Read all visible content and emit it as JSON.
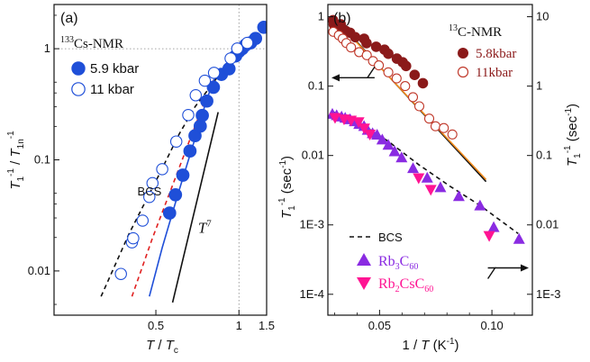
{
  "chart_data": [
    {
      "type": "scatter",
      "panel_label": "(a)",
      "title": "133Cs-NMR",
      "title_sup": "133",
      "title_base": "Cs-NMR",
      "xlabel": "T / Tc",
      "xlabel_parts": [
        "T",
        " / ",
        "T",
        "c"
      ],
      "ylabel": "T1^-1 / T1n^-1",
      "ylabel_parts": [
        "T",
        "1",
        "-1",
        " / ",
        "T",
        "1n",
        "-1"
      ],
      "x_scale": "reciprocal",
      "y_scale": "log",
      "xlim": [
        0.31,
        1.5
      ],
      "ylim": [
        0.004,
        2.5
      ],
      "x_ticks": [
        0.5,
        1,
        1.5
      ],
      "x_tick_labels": [
        "0.5",
        "1",
        "1.5"
      ],
      "y_ticks": [
        0.01,
        0.1,
        1
      ],
      "y_tick_labels": [
        "0.01",
        "0.1",
        "1"
      ],
      "reference_lines": {
        "x": 1,
        "y": 1
      },
      "series": [
        {
          "name": "5.9 kbar",
          "marker": "filled-circle",
          "color": "#1f4fd8",
          "points": [
            [
              0.545,
              0.0332
            ],
            [
              0.567,
              0.0485
            ],
            [
              0.597,
              0.0728
            ],
            [
              0.629,
              0.12
            ],
            [
              0.654,
              0.165
            ],
            [
              0.682,
              0.201
            ],
            [
              0.694,
              0.251
            ],
            [
              0.721,
              0.338
            ],
            [
              0.765,
              0.45
            ],
            [
              0.826,
              0.588
            ],
            [
              0.893,
              0.66
            ],
            [
              0.962,
              0.861
            ],
            [
              1.0,
              0.946
            ],
            [
              1.042,
              1.003
            ],
            [
              1.087,
              1.08
            ],
            [
              1.163,
              1.13
            ],
            [
              1.25,
              1.237
            ],
            [
              1.429,
              1.56
            ]
          ]
        },
        {
          "name": "11 kbar",
          "marker": "open-circle",
          "color": "#1f4fd8",
          "points": [
            [
              0.413,
              0.0094
            ],
            [
              0.437,
              0.0181
            ],
            [
              0.44,
              0.0197
            ],
            [
              0.463,
              0.0284
            ],
            [
              0.481,
              0.0464
            ],
            [
              0.49,
              0.0617
            ],
            [
              0.52,
              0.0824
            ],
            [
              0.57,
              0.146
            ],
            [
              0.621,
              0.253
            ],
            [
              0.658,
              0.381
            ],
            [
              0.709,
              0.516
            ],
            [
              0.769,
              0.607
            ],
            [
              0.909,
              0.817
            ],
            [
              0.98,
              1.004
            ],
            [
              1.111,
              1.13
            ]
          ]
        }
      ],
      "lines": [
        {
          "name": "BCS",
          "style": "dashed",
          "color": "#111111",
          "points": [
            [
              0.376,
              0.0059
            ],
            [
              0.431,
              0.0218
            ],
            [
              0.505,
              0.069
            ],
            [
              0.581,
              0.17
            ],
            [
              0.654,
              0.3
            ],
            [
              0.73,
              0.43
            ],
            [
              0.787,
              0.54
            ]
          ]
        },
        {
          "style": "dashed",
          "color": "#e02020",
          "points": [
            [
              0.437,
              0.0059
            ],
            [
              0.49,
              0.0198
            ],
            [
              0.557,
              0.06
            ],
            [
              0.629,
              0.153
            ],
            [
              0.719,
              0.37
            ],
            [
              0.787,
              0.6
            ]
          ]
        },
        {
          "style": "solid",
          "color": "#1f4fd8",
          "points": [
            [
              0.481,
              0.0059
            ],
            [
              0.52,
              0.0162
            ],
            [
              0.579,
              0.0511
            ],
            [
              0.658,
              0.163
            ],
            [
              0.72,
              0.348
            ],
            [
              0.787,
              0.6
            ]
          ]
        },
        {
          "name": "T^7",
          "style": "solid",
          "color": "#111111",
          "points": [
            [
              0.556,
              0.0052
            ],
            [
              0.8,
              0.2685
            ]
          ]
        }
      ],
      "annotations": [
        {
          "text": "BCS",
          "anchor_x": 0.45,
          "anchor_y": 0.048
        },
        {
          "text": "T",
          "sup": "7",
          "anchor_x": 0.67,
          "anchor_y": 0.022
        }
      ]
    },
    {
      "type": "scatter",
      "panel_label": "(b)",
      "xlabel": "1 / T (K-1)",
      "xlabel_parts": [
        "1 / ",
        "T",
        " (K",
        "-1",
        ")"
      ],
      "ylabel_left": "T1^-1 (sec^-1)",
      "ylabel_left_parts": [
        "T",
        "1",
        "-1",
        " (sec",
        "-1",
        ")"
      ],
      "ylabel_right": "T1^-1 (sec^-1)",
      "ylabel_right_parts": [
        "T",
        "1",
        "-1",
        " (sec",
        "-1",
        ")"
      ],
      "y_scale": "log",
      "xlim": [
        0.027,
        0.118
      ],
      "x_ticks": [
        0.05,
        0.1
      ],
      "x_tick_labels": [
        "0.05",
        "0.10"
      ],
      "ylim_left": [
        5e-05,
        1.5
      ],
      "y_ticks_left": [
        0.0001,
        0.001,
        0.01,
        0.1,
        1
      ],
      "y_tick_labels_left": [
        "1E-4",
        "1E-3",
        "0.01",
        "0.1",
        "1"
      ],
      "ylim_right": [
        0.0005,
        15
      ],
      "y_ticks_right": [
        0.001,
        0.01,
        0.1,
        1,
        10
      ],
      "y_tick_labels_right": [
        "1E-3",
        "0.01",
        "0.1",
        "1",
        "10"
      ],
      "nmr_label": "13C-NMR",
      "nmr_sup": "13",
      "nmr_base": "C-NMR",
      "series": [
        {
          "name": "5.8kbar",
          "axis": "left",
          "marker": "filled-circle",
          "color": "#8b1a1a",
          "points": [
            [
              0.0293,
              0.891
            ],
            [
              0.0296,
              0.777
            ],
            [
              0.0327,
              0.78
            ],
            [
              0.0332,
              0.694
            ],
            [
              0.0351,
              0.622
            ],
            [
              0.0369,
              0.587
            ],
            [
              0.0392,
              0.507
            ],
            [
              0.0431,
              0.482
            ],
            [
              0.0442,
              0.416
            ],
            [
              0.0485,
              0.369
            ],
            [
              0.0522,
              0.335
            ],
            [
              0.0539,
              0.293
            ],
            [
              0.0577,
              0.249
            ],
            [
              0.0603,
              0.22
            ],
            [
              0.0618,
              0.195
            ],
            [
              0.0656,
              0.145
            ],
            [
              0.0693,
              0.11
            ]
          ]
        },
        {
          "name": "11kbar",
          "axis": "left",
          "marker": "open-circle",
          "color": "#c0392b",
          "points": [
            [
              0.0294,
              0.606
            ],
            [
              0.0319,
              0.54
            ],
            [
              0.0336,
              0.483
            ],
            [
              0.0352,
              0.418
            ],
            [
              0.0373,
              0.361
            ],
            [
              0.0409,
              0.309
            ],
            [
              0.0443,
              0.279
            ],
            [
              0.0471,
              0.23
            ],
            [
              0.0497,
              0.199
            ],
            [
              0.0539,
              0.158
            ],
            [
              0.0576,
              0.129
            ],
            [
              0.0614,
              0.1
            ],
            [
              0.0649,
              0.0694
            ],
            [
              0.0677,
              0.0512
            ],
            [
              0.0721,
              0.034
            ],
            [
              0.0749,
              0.0264
            ],
            [
              0.0786,
              0.0249
            ],
            [
              0.0824,
              0.0201
            ]
          ]
        },
        {
          "name": "Rb3C60",
          "name_parts": [
            "Rb",
            "3",
            "C",
            "60"
          ],
          "axis": "right",
          "marker": "triangle-up",
          "color": "#8a2be2",
          "points": [
            [
              0.029,
              0.399
            ],
            [
              0.0309,
              0.381
            ],
            [
              0.0331,
              0.365
            ],
            [
              0.0347,
              0.35
            ],
            [
              0.0369,
              0.334
            ],
            [
              0.0389,
              0.312
            ],
            [
              0.0409,
              0.285
            ],
            [
              0.0431,
              0.267
            ],
            [
              0.0447,
              0.235
            ],
            [
              0.0469,
              0.21
            ],
            [
              0.0489,
              0.2
            ],
            [
              0.0512,
              0.17
            ],
            [
              0.0539,
              0.143
            ],
            [
              0.0567,
              0.115
            ],
            [
              0.0598,
              0.094
            ],
            [
              0.0649,
              0.066
            ],
            [
              0.0712,
              0.048
            ],
            [
              0.0771,
              0.035
            ],
            [
              0.0853,
              0.026
            ],
            [
              0.0947,
              0.0191
            ],
            [
              0.1008,
              0.0093
            ],
            [
              0.1121,
              0.0063
            ]
          ]
        },
        {
          "name": "Rb2CsC60",
          "name_parts": [
            "Rb",
            "2",
            "CsC",
            "60"
          ],
          "axis": "right",
          "marker": "triangle-down",
          "color": "#ff1493",
          "points": [
            [
              0.0302,
              0.347
            ],
            [
              0.0342,
              0.331
            ],
            [
              0.0373,
              0.318
            ],
            [
              0.0407,
              0.302
            ],
            [
              0.0432,
              0.245
            ],
            [
              0.0457,
              0.2
            ],
            [
              0.0674,
              0.047
            ],
            [
              0.0728,
              0.032
            ],
            [
              0.0988,
              0.0069
            ]
          ]
        }
      ],
      "lines": [
        {
          "axis": "left",
          "style": "solid",
          "color": "#111111",
          "points": [
            [
              0.0297,
              0.99
            ],
            [
              0.0974,
              0.0042
            ]
          ]
        },
        {
          "axis": "left",
          "style": "solid",
          "color": "#f08c1e",
          "points": [
            [
              0.0297,
              0.95
            ],
            [
              0.0974,
              0.0045
            ]
          ]
        },
        {
          "name": "BCS",
          "axis": "right",
          "style": "dashed",
          "color": "#111111",
          "points": [
            [
              0.0297,
              0.42
            ],
            [
              0.0409,
              0.3
            ],
            [
              0.0539,
              0.16
            ],
            [
              0.0674,
              0.074
            ],
            [
              0.0814,
              0.036
            ],
            [
              0.0946,
              0.0192
            ],
            [
              0.1117,
              0.0075
            ]
          ]
        }
      ],
      "axis_arrows": [
        {
          "direction": "left",
          "target": "left axis",
          "anchor_x": 0.047,
          "anchor_y": 0.132
        },
        {
          "direction": "right",
          "target": "right axis",
          "anchor_x": 0.099,
          "anchor_y": 0.0024
        }
      ]
    }
  ]
}
